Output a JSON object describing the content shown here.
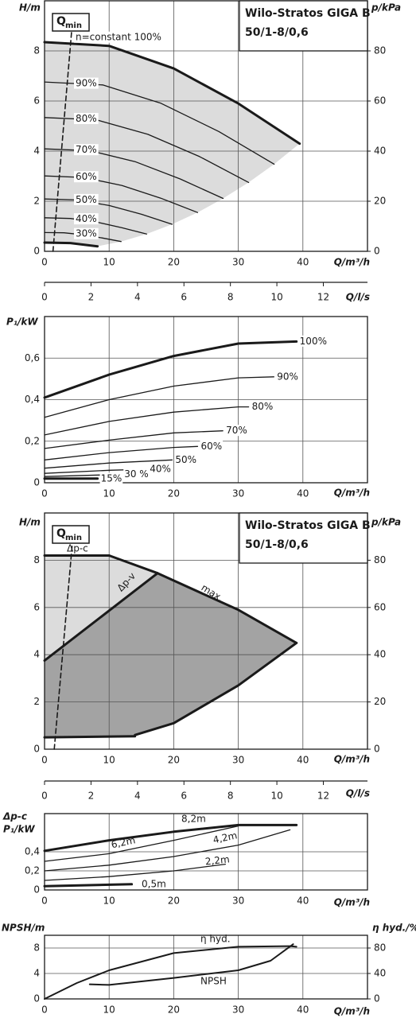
{
  "chart_data": [
    {
      "type": "line",
      "title_lines": [
        "Wilo-Stratos GIGA B",
        "50/1-8/0,6"
      ],
      "qmin_label": [
        "Q",
        "min"
      ],
      "ylabel": "H/m",
      "y2label": "p/kPa",
      "xlabel": "Q/m³/h",
      "x2label": "Q/l/s",
      "xlim": [
        0,
        50
      ],
      "xticks": [
        0,
        10,
        20,
        30,
        40
      ],
      "ylim": [
        0,
        10
      ],
      "yticks": [
        0,
        2,
        4,
        6,
        8
      ],
      "y2lim": [
        0,
        100
      ],
      "y2ticks": [
        0,
        20,
        40,
        60,
        80
      ],
      "x2lim": [
        0,
        13.9
      ],
      "x2ticks": [
        0,
        2,
        4,
        6,
        8,
        10,
        12
      ],
      "grid": true,
      "color": "#1a1a1a",
      "fill_colors": [
        "#dcdcdc"
      ],
      "series": [
        {
          "name": "n=constant 100%",
          "x": [
            0,
            10,
            20,
            30,
            39.5
          ],
          "values": [
            8.35,
            8.2,
            7.3,
            5.9,
            4.3
          ],
          "line_width": 3
        },
        {
          "name": "90%",
          "x": [
            0,
            9,
            18,
            27,
            35.55
          ],
          "values": [
            6.76,
            6.64,
            5.91,
            4.78,
            3.48
          ]
        },
        {
          "name": "80%",
          "x": [
            0,
            8,
            16,
            24,
            31.6
          ],
          "values": [
            5.34,
            5.25,
            4.67,
            3.78,
            2.75
          ]
        },
        {
          "name": "70%",
          "x": [
            0,
            7,
            14,
            21,
            27.65
          ],
          "values": [
            4.09,
            4.02,
            3.58,
            2.89,
            2.11
          ]
        },
        {
          "name": "60%",
          "x": [
            0,
            6,
            12,
            18,
            23.7
          ],
          "values": [
            3.01,
            2.95,
            2.63,
            2.12,
            1.55
          ]
        },
        {
          "name": "50%",
          "x": [
            0,
            5,
            10,
            15,
            19.75
          ],
          "values": [
            2.09,
            2.05,
            1.83,
            1.48,
            1.08
          ]
        },
        {
          "name": "40%",
          "x": [
            0,
            4,
            8,
            12,
            15.8
          ],
          "values": [
            1.34,
            1.31,
            1.17,
            0.94,
            0.69
          ]
        },
        {
          "name": "30%",
          "x": [
            0,
            3,
            6,
            9,
            11.85
          ],
          "values": [
            0.75,
            0.74,
            0.66,
            0.53,
            0.39
          ]
        },
        {
          "x": [
            0,
            4,
            8.2
          ],
          "values": [
            0.35,
            0.33,
            0.2
          ],
          "line_width": 3
        },
        {
          "x": [
            1.3,
            4.2
          ],
          "values": [
            0,
            8.8
          ],
          "dash": true
        }
      ]
    },
    {
      "type": "line",
      "ylabel": "P₁/kW",
      "xlabel": "Q/m³/h",
      "xlim": [
        0,
        50
      ],
      "xticks": [
        0,
        10,
        20,
        30,
        40
      ],
      "ylim": [
        0,
        0.8
      ],
      "yticks": [
        0,
        {
          "value": 0.2,
          "label": "0,2"
        },
        {
          "value": 0.4,
          "label": "0,4"
        },
        {
          "value": 0.6,
          "label": "0,6"
        }
      ],
      "grid": true,
      "color": "#1a1a1a",
      "series": [
        {
          "name": "100%",
          "x": [
            0,
            10,
            20,
            30,
            39
          ],
          "values": [
            0.41,
            0.52,
            0.61,
            0.67,
            0.68
          ],
          "line_width": 3
        },
        {
          "name": "90%",
          "x": [
            0,
            10,
            20,
            30,
            35.5
          ],
          "values": [
            0.315,
            0.4,
            0.465,
            0.505,
            0.51
          ]
        },
        {
          "name": "80%",
          "x": [
            0,
            10,
            20,
            30,
            31.6
          ],
          "values": [
            0.23,
            0.295,
            0.34,
            0.365,
            0.365
          ]
        },
        {
          "name": "70%",
          "x": [
            0,
            10,
            20,
            27.6
          ],
          "values": [
            0.165,
            0.205,
            0.24,
            0.25
          ]
        },
        {
          "name": "60%",
          "x": [
            0,
            10,
            20,
            23.7
          ],
          "values": [
            0.11,
            0.145,
            0.17,
            0.175
          ]
        },
        {
          "name": "50%",
          "x": [
            0,
            10,
            19.75
          ],
          "values": [
            0.07,
            0.095,
            0.11
          ]
        },
        {
          "name": "40%",
          "x": [
            0,
            10,
            15.8
          ],
          "values": [
            0.045,
            0.06,
            0.065
          ]
        },
        {
          "name": "30 %",
          "x": [
            0,
            11.85
          ],
          "values": [
            0.03,
            0.04
          ]
        },
        {
          "name": "15%",
          "x": [
            0,
            8.2
          ],
          "values": [
            0.02,
            0.02
          ],
          "line_width": 3
        }
      ]
    },
    {
      "type": "line",
      "title_lines": [
        "Wilo-Stratos GIGA B",
        "50/1-8/0,6"
      ],
      "qmin_label": [
        "Q",
        "min"
      ],
      "ylabel": "H/m",
      "y2label": "p/kPa",
      "xlabel": "Q/m³/h",
      "x2label": "Q/l/s",
      "xlim": [
        0,
        50
      ],
      "xticks": [
        0,
        10,
        20,
        30,
        40
      ],
      "ylim": [
        0,
        10
      ],
      "yticks": [
        0,
        2,
        4,
        6,
        8
      ],
      "y2lim": [
        0,
        100
      ],
      "y2ticks": [
        0,
        20,
        40,
        60,
        80
      ],
      "x2lim": [
        0,
        13.9
      ],
      "x2ticks": [
        0,
        2,
        4,
        6,
        8,
        10,
        12
      ],
      "grid": true,
      "color": "#1a1a1a",
      "fill_colors": [
        "#dcdcdc",
        "#a3a3a3"
      ],
      "series": [
        {
          "name": "Δp-c",
          "x": [
            0,
            10
          ],
          "values": [
            8.2,
            8.2
          ],
          "line_width": 3
        },
        {
          "name": "Δp-v",
          "x": [
            0,
            17.5
          ],
          "values": [
            3.75,
            7.45
          ],
          "line_width": 3
        },
        {
          "name": "max.",
          "x": [
            10,
            17.5,
            30,
            39
          ],
          "values": [
            8.2,
            7.45,
            5.9,
            4.5
          ],
          "line_width": 3
        },
        {
          "x": [
            39,
            30,
            20,
            14
          ],
          "values": [
            4.5,
            2.7,
            1.1,
            0.6
          ],
          "line_width": 3
        },
        {
          "x": [
            0,
            14
          ],
          "values": [
            0.5,
            0.55
          ],
          "line_width": 3
        },
        {
          "x": [
            1.5,
            4.3
          ],
          "values": [
            0,
            8.7
          ],
          "dash": true
        }
      ]
    },
    {
      "type": "line",
      "ylabel": [
        "Δp-c",
        "P₁/kW"
      ],
      "xlabel": "Q/m³/h",
      "xlim": [
        0,
        50
      ],
      "xticks": [
        0,
        10,
        20,
        30,
        40
      ],
      "ylim": [
        0,
        0.8
      ],
      "yticks": [
        0,
        {
          "value": 0.2,
          "label": "0,2"
        },
        {
          "value": 0.4,
          "label": "0,4"
        }
      ],
      "grid": true,
      "color": "#1a1a1a",
      "series": [
        {
          "name": "8,2m",
          "x": [
            0,
            10,
            20,
            30,
            39
          ],
          "values": [
            0.41,
            0.52,
            0.61,
            0.68,
            0.68
          ],
          "line_width": 3
        },
        {
          "name": "6,2m",
          "x": [
            0,
            10,
            20,
            30
          ],
          "values": [
            0.3,
            0.38,
            0.52,
            0.67
          ]
        },
        {
          "name": "4,2m",
          "x": [
            0,
            10,
            20,
            30,
            38
          ],
          "values": [
            0.2,
            0.26,
            0.35,
            0.47,
            0.63
          ]
        },
        {
          "name": "2,2m",
          "x": [
            0,
            10,
            20,
            28
          ],
          "values": [
            0.1,
            0.14,
            0.2,
            0.27
          ]
        },
        {
          "name": "0,5m",
          "x": [
            0,
            13.5
          ],
          "values": [
            0.04,
            0.06
          ],
          "line_width": 3
        }
      ]
    },
    {
      "type": "line",
      "ylabel": "NPSH/m",
      "y2label": "η hyd./%",
      "xlabel": "Q/m³/h",
      "xlim": [
        0,
        50
      ],
      "xticks": [
        0,
        10,
        20,
        30,
        40
      ],
      "ylim": [
        0,
        10
      ],
      "yticks": [
        0,
        4,
        8
      ],
      "y2lim": [
        0,
        100
      ],
      "y2ticks": [
        0,
        40,
        80
      ],
      "grid": true,
      "color": "#1a1a1a",
      "series": [
        {
          "name": "η hyd.",
          "axis": "y2",
          "x": [
            0,
            5,
            10,
            20,
            30,
            38,
            39
          ],
          "values": [
            0,
            25,
            45,
            72,
            82,
            83,
            82
          ],
          "line_width": 2
        },
        {
          "name": "NPSH",
          "x": [
            7,
            10,
            20,
            30,
            35,
            38.5
          ],
          "values": [
            2.3,
            2.2,
            3.3,
            4.5,
            6,
            8.6
          ],
          "line_width": 2
        }
      ]
    }
  ]
}
